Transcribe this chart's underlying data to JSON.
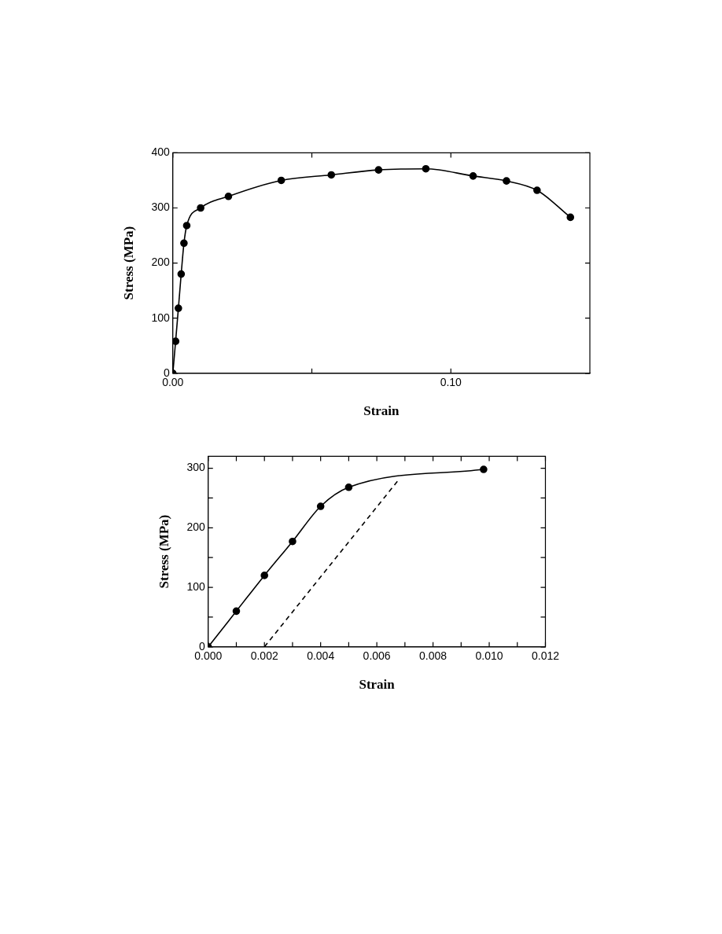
{
  "chart_data": [
    {
      "type": "line",
      "xlabel": "Strain",
      "ylabel": "Stress (MPa)",
      "xlim": [
        0,
        0.15
      ],
      "ylim": [
        0,
        400
      ],
      "xticks": [
        {
          "value": 0,
          "label": "0.00"
        },
        {
          "value": 0.05,
          "label": null
        },
        {
          "value": 0.1,
          "label": "0.10"
        }
      ],
      "yticks": [
        0,
        100,
        200,
        300,
        400
      ],
      "series": [
        {
          "color": "#000000",
          "marker": "circle",
          "line_style": "solid",
          "x": [
            0,
            0.001,
            0.002,
            0.003,
            0.004,
            0.005,
            0.01,
            0.02,
            0.039,
            0.057,
            0.074,
            0.091,
            0.108,
            0.12,
            0.131,
            0.143
          ],
          "values": [
            0,
            58,
            118,
            180,
            236,
            268,
            300,
            321,
            350,
            360,
            369,
            371,
            358,
            349,
            332,
            283
          ]
        }
      ]
    },
    {
      "type": "line",
      "xlabel": "Strain",
      "ylabel": "Stress (MPa)",
      "xlim": [
        0,
        0.012
      ],
      "ylim": [
        0,
        320
      ],
      "xticks": [
        {
          "value": 0,
          "label": "0.000"
        },
        {
          "value": 0.001,
          "label": null
        },
        {
          "value": 0.002,
          "label": "0.002"
        },
        {
          "value": 0.003,
          "label": null
        },
        {
          "value": 0.004,
          "label": "0.004"
        },
        {
          "value": 0.005,
          "label": null
        },
        {
          "value": 0.006,
          "label": "0.006"
        },
        {
          "value": 0.007,
          "label": null
        },
        {
          "value": 0.008,
          "label": "0.008"
        },
        {
          "value": 0.009,
          "label": null
        },
        {
          "value": 0.01,
          "label": "0.010"
        },
        {
          "value": 0.011,
          "label": null
        },
        {
          "value": 0.012,
          "label": "0.012"
        }
      ],
      "yticks": [
        0,
        {
          "value": 50,
          "label": null
        },
        100,
        {
          "value": 150,
          "label": null
        },
        200,
        {
          "value": 250,
          "label": null
        },
        300
      ],
      "series": [
        {
          "color": "#000000",
          "marker": "circle",
          "line_style": "solid",
          "x": [
            0,
            0.001,
            0.002,
            0.003,
            0.004,
            0.005,
            0.0098
          ],
          "values": [
            0,
            60,
            120,
            177,
            236,
            268,
            298
          ]
        },
        {
          "type": "line",
          "color": "#000000",
          "marker": "none",
          "line_style": "dashed",
          "x": [
            0.002,
            0.0068
          ],
          "values": [
            0,
            282
          ]
        }
      ]
    }
  ]
}
